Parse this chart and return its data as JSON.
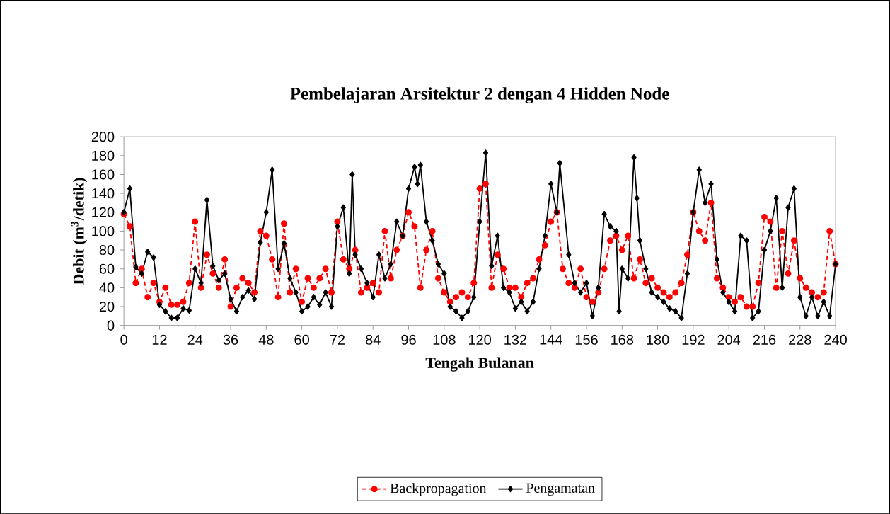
{
  "chart_data": {
    "type": "line",
    "title": "Pembelajaran Arsitektur 2 dengan 4 Hidden Node",
    "xlabel": "Tengah Bulanan",
    "ylabel": "Debit (m$^{3}$/detik)",
    "xlim": [
      0,
      240
    ],
    "ylim": [
      0,
      200
    ],
    "xticks": [
      0,
      12,
      24,
      36,
      48,
      60,
      72,
      84,
      96,
      108,
      120,
      132,
      144,
      156,
      168,
      180,
      192,
      204,
      216,
      228,
      240
    ],
    "yticks": [
      0,
      20,
      40,
      60,
      80,
      100,
      120,
      140,
      160,
      180,
      200
    ],
    "grid": false,
    "legend": "bottom",
    "series": [
      {
        "name": "Backpropagation",
        "color": "#ff0000",
        "marker": "circle",
        "line_style": "dotted",
        "x": [
          0,
          2,
          4,
          6,
          8,
          10,
          12,
          14,
          16,
          18,
          20,
          22,
          24,
          26,
          28,
          30,
          32,
          34,
          36,
          38,
          40,
          42,
          44,
          46,
          48,
          50,
          52,
          54,
          56,
          58,
          60,
          62,
          64,
          66,
          68,
          70,
          72,
          74,
          76,
          78,
          80,
          82,
          84,
          86,
          88,
          90,
          92,
          94,
          96,
          98,
          100,
          102,
          104,
          106,
          108,
          110,
          112,
          114,
          116,
          118,
          120,
          122,
          124,
          126,
          128,
          130,
          132,
          134,
          136,
          138,
          140,
          142,
          144,
          146,
          148,
          150,
          152,
          154,
          156,
          158,
          160,
          162,
          164,
          166,
          168,
          170,
          172,
          174,
          176,
          178,
          180,
          182,
          184,
          186,
          188,
          190,
          192,
          194,
          196,
          198,
          200,
          202,
          204,
          206,
          208,
          210,
          212,
          214,
          216,
          218,
          220,
          222,
          224,
          226,
          228,
          230,
          232,
          234,
          236,
          238,
          240
        ],
        "values": [
          118,
          105,
          45,
          60,
          30,
          45,
          25,
          40,
          22,
          22,
          25,
          45,
          110,
          40,
          75,
          55,
          40,
          70,
          20,
          40,
          50,
          45,
          35,
          100,
          95,
          70,
          30,
          108,
          35,
          60,
          25,
          50,
          40,
          50,
          60,
          35,
          110,
          70,
          60,
          80,
          35,
          40,
          45,
          35,
          100,
          50,
          80,
          95,
          120,
          105,
          40,
          80,
          100,
          50,
          35,
          25,
          30,
          35,
          30,
          45,
          145,
          150,
          40,
          75,
          60,
          40,
          40,
          30,
          45,
          50,
          70,
          85,
          110,
          120,
          60,
          45,
          40,
          60,
          30,
          25,
          35,
          60,
          90,
          95,
          80,
          95,
          50,
          70,
          45,
          50,
          40,
          35,
          30,
          35,
          45,
          75,
          120,
          100,
          90,
          130,
          50,
          40,
          30,
          25,
          30,
          20,
          20,
          45,
          115,
          110,
          40,
          100,
          55,
          90,
          50,
          40,
          35,
          30,
          35,
          100,
          65
        ]
      },
      {
        "name": "Pengamatan",
        "color": "#000000",
        "marker": "diamond",
        "line_style": "solid",
        "x": [
          0,
          2,
          4,
          6,
          8,
          10,
          12,
          14,
          16,
          18,
          20,
          22,
          24,
          26,
          28,
          30,
          32,
          34,
          36,
          38,
          40,
          42,
          44,
          46,
          48,
          50,
          52,
          54,
          56,
          58,
          60,
          62,
          64,
          66,
          68,
          70,
          72,
          74,
          76,
          77,
          78,
          80,
          82,
          84,
          86,
          88,
          90,
          92,
          94,
          96,
          98,
          99,
          100,
          102,
          104,
          106,
          108,
          110,
          112,
          114,
          116,
          118,
          120,
          122,
          124,
          126,
          128,
          130,
          132,
          134,
          136,
          138,
          140,
          142,
          144,
          146,
          147,
          150,
          152,
          154,
          156,
          158,
          160,
          162,
          164,
          166,
          167,
          168,
          170,
          172,
          173,
          174,
          176,
          178,
          180,
          182,
          184,
          186,
          188,
          190,
          192,
          194,
          196,
          198,
          200,
          202,
          204,
          206,
          208,
          210,
          212,
          214,
          216,
          218,
          220,
          222,
          224,
          226,
          228,
          230,
          232,
          234,
          236,
          238,
          240
        ],
        "values": [
          120,
          145,
          62,
          55,
          78,
          72,
          22,
          15,
          8,
          8,
          18,
          16,
          60,
          45,
          133,
          63,
          48,
          55,
          28,
          15,
          30,
          37,
          28,
          88,
          120,
          165,
          60,
          87,
          50,
          35,
          15,
          20,
          30,
          22,
          35,
          20,
          105,
          125,
          55,
          160,
          75,
          60,
          45,
          30,
          75,
          50,
          65,
          110,
          95,
          145,
          168,
          150,
          170,
          110,
          90,
          65,
          55,
          20,
          15,
          8,
          15,
          30,
          110,
          183,
          63,
          95,
          40,
          35,
          18,
          25,
          15,
          25,
          60,
          95,
          150,
          120,
          172,
          75,
          45,
          35,
          45,
          10,
          40,
          118,
          105,
          100,
          15,
          60,
          50,
          178,
          135,
          90,
          60,
          35,
          30,
          25,
          18,
          15,
          8,
          55,
          120,
          165,
          130,
          150,
          70,
          35,
          25,
          15,
          95,
          90,
          8,
          15,
          80,
          100,
          135,
          40,
          125,
          145,
          30,
          10,
          30,
          10,
          25,
          10,
          65
        ]
      }
    ]
  }
}
